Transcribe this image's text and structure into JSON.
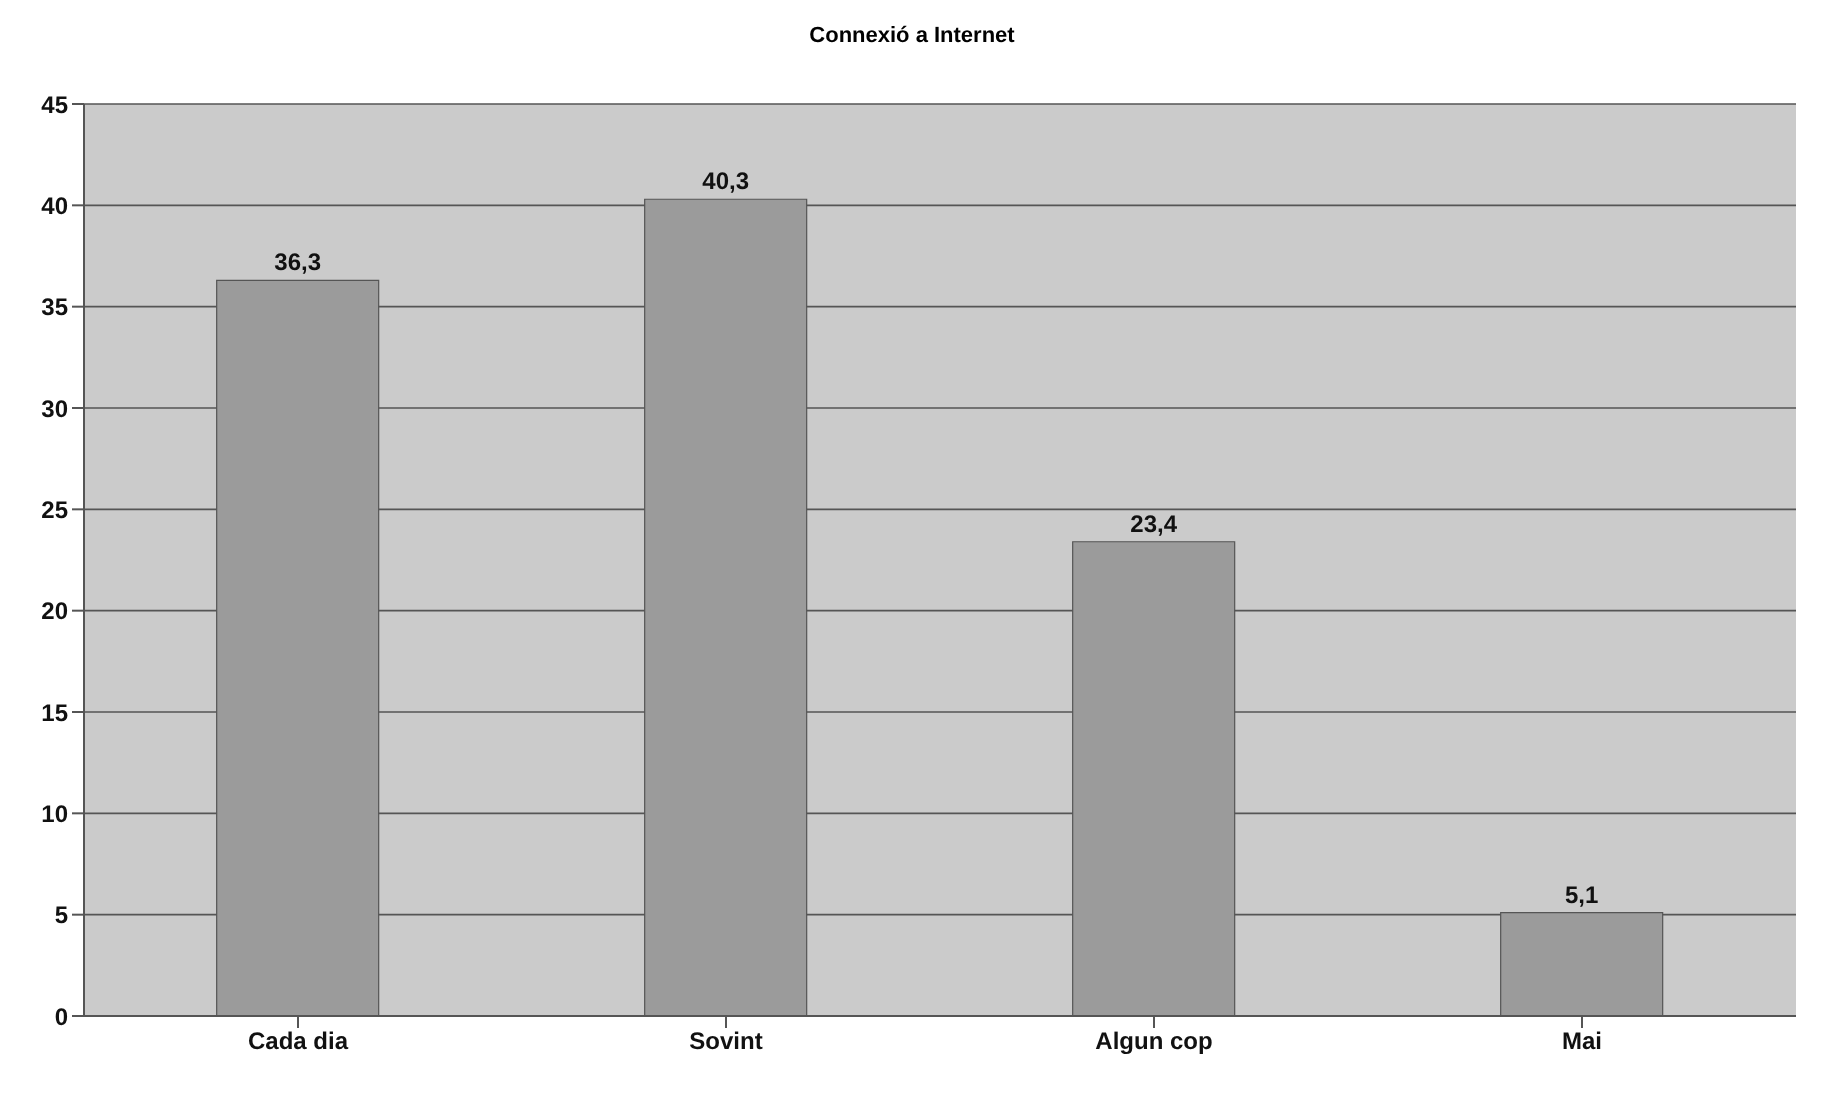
{
  "chart_data": {
    "type": "bar",
    "title": "Connexió a Internet",
    "categories": [
      "Cada dia",
      "Sovint",
      "Algun cop",
      "Mai"
    ],
    "values": [
      36.3,
      40.3,
      23.4,
      5.1
    ],
    "color": "#9b9b9b",
    "value_labels": [
      "36,3",
      "40,3",
      "23,4",
      "5,1"
    ],
    "ylim": [
      0,
      45
    ],
    "yticks": [
      0,
      5,
      10,
      15,
      20,
      25,
      30,
      35,
      40,
      45
    ],
    "grid": "y"
  }
}
